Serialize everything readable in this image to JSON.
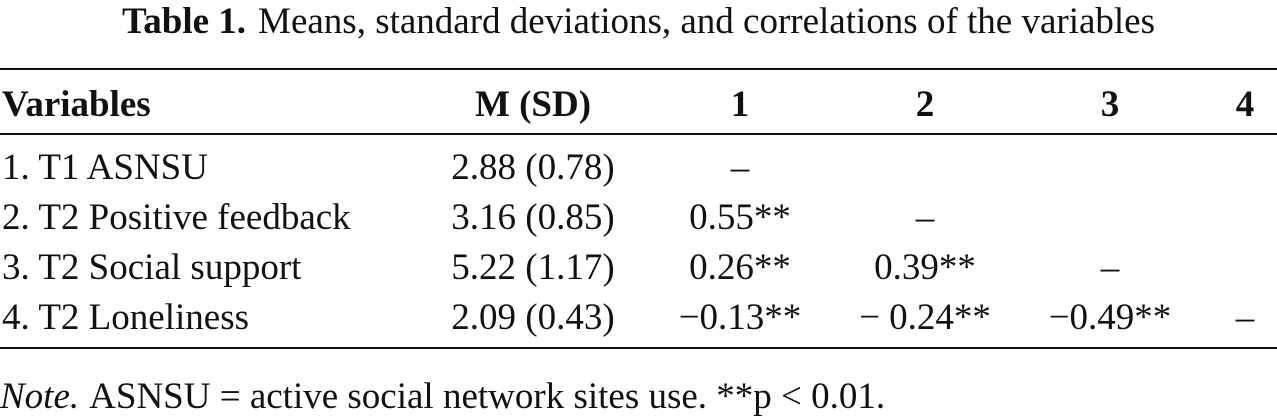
{
  "caption": {
    "label": "Table 1.",
    "text": "Means, standard deviations, and correlations of the variables"
  },
  "table": {
    "headers": [
      "Variables",
      "M (SD)",
      "1",
      "2",
      "3",
      "4"
    ],
    "rows": [
      [
        "1. T1 ASNSU",
        "2.88 (0.78)",
        "–",
        "",
        "",
        ""
      ],
      [
        "2. T2 Positive feedback",
        "3.16 (0.85)",
        "0.55**",
        "–",
        "",
        ""
      ],
      [
        "3. T2 Social support",
        "5.22 (1.17)",
        "0.26**",
        "0.39**",
        "–",
        ""
      ],
      [
        "4. T2 Loneliness",
        "2.09 (0.43)",
        "−0.13**",
        "− 0.24**",
        "−0.49**",
        "–"
      ]
    ]
  },
  "note": {
    "label": "Note.",
    "text": "ASNSU = active social network sites use. **p < 0.01."
  }
}
